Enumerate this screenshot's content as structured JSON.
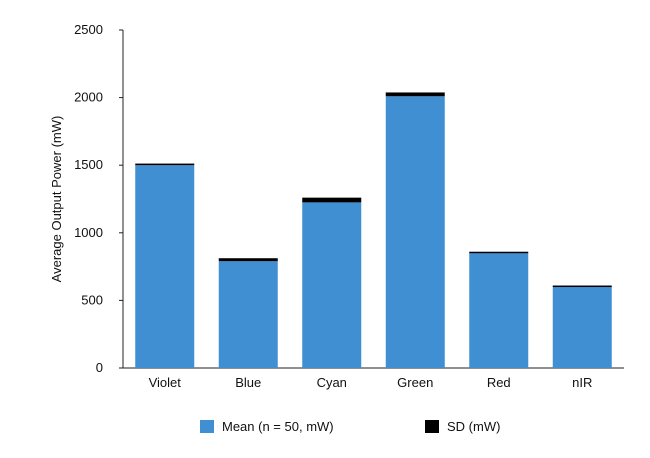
{
  "chart_data": {
    "type": "bar",
    "categories": [
      "Violet",
      "Blue",
      "Cyan",
      "Green",
      "Red",
      "nIR"
    ],
    "series": [
      {
        "name": "Mean (n = 50, mW)",
        "values": [
          1500,
          790,
          1225,
          2010,
          850,
          600
        ],
        "color": "#3f8fd2"
      },
      {
        "name": "SD (mW)",
        "values": [
          12,
          22,
          35,
          28,
          10,
          10
        ],
        "color": "#000000"
      }
    ],
    "stacked": true,
    "ylabel": "Average Output Power (mW)",
    "xlabel": "",
    "ylim": [
      0,
      2500
    ],
    "yticks": [
      "0",
      "500",
      "1000",
      "1500",
      "2000",
      "2500"
    ],
    "grid": false,
    "legend_position": "bottom"
  }
}
